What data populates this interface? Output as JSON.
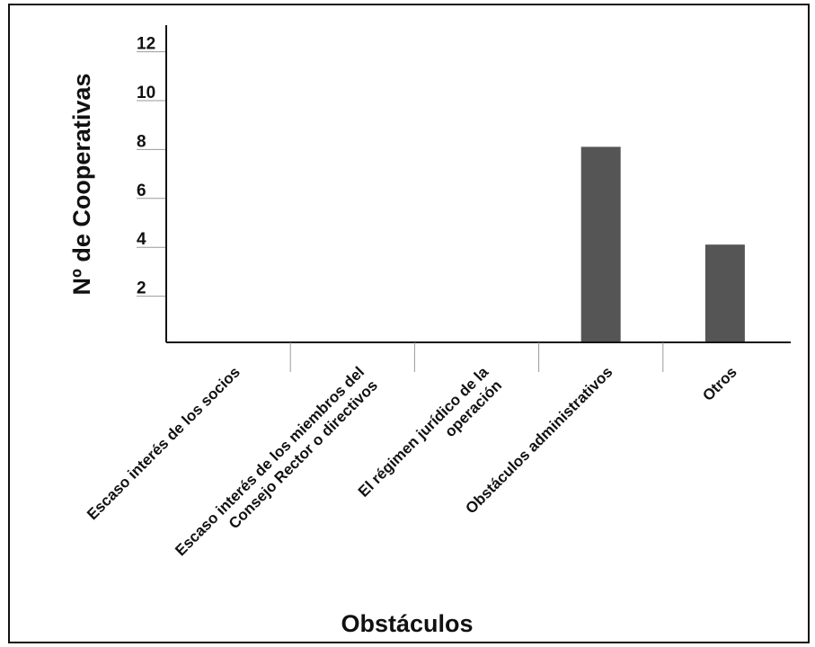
{
  "chart_data": {
    "type": "bar",
    "title": "",
    "xlabel": "Obstáculos",
    "ylabel": "Nº de Cooperativas",
    "categories": [
      [
        "Escaso interés de los socios"
      ],
      [
        "Escaso interés de los miembros del",
        "Consejo Rector o directivos"
      ],
      [
        "El régimen jurídico de la",
        "operación"
      ],
      [
        "Obstáculos administrativos"
      ],
      [
        "Otros"
      ]
    ],
    "values": [
      0,
      0,
      0,
      8,
      4
    ],
    "yticks": [
      2,
      4,
      6,
      8,
      10,
      12
    ],
    "ylim": [
      0,
      12.5
    ],
    "grid": false,
    "bar_color": "#555555"
  }
}
